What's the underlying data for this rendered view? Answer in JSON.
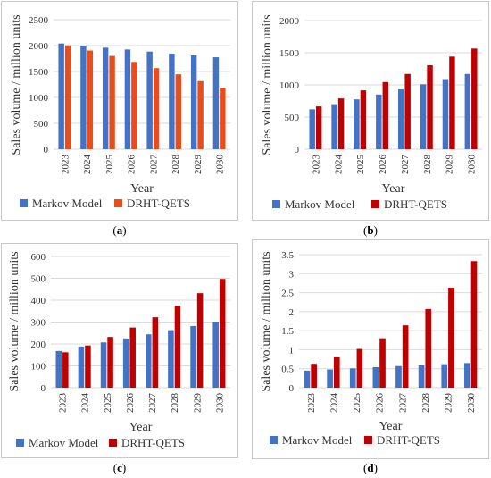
{
  "chart_data": [
    {
      "type": "bar",
      "panel": "a",
      "categories": [
        "2023",
        "2024",
        "2025",
        "2026",
        "2027",
        "2028",
        "2029",
        "2030"
      ],
      "series": [
        {
          "name": "Markov Model",
          "values": [
            2040,
            2000,
            1960,
            1925,
            1885,
            1845,
            1810,
            1775
          ]
        },
        {
          "name": "DRHT-QETS",
          "values": [
            2005,
            1905,
            1800,
            1685,
            1565,
            1445,
            1315,
            1185
          ]
        }
      ],
      "xlabel": "Year",
      "ylabel": "Sales volume / million units",
      "ylim": [
        0,
        2500
      ],
      "yticks": [
        "0",
        "500",
        "1000",
        "1500",
        "2000",
        "2500"
      ],
      "grid": true,
      "legend": "bottom",
      "colors": [
        "#4472c4",
        "#e84e1b"
      ]
    },
    {
      "type": "bar",
      "panel": "b",
      "categories": [
        "2023",
        "2024",
        "2025",
        "2026",
        "2027",
        "2028",
        "2029",
        "2030"
      ],
      "series": [
        {
          "name": "Markov Model",
          "values": [
            620,
            700,
            775,
            850,
            930,
            1010,
            1090,
            1170
          ]
        },
        {
          "name": "DRHT-QETS",
          "values": [
            665,
            790,
            915,
            1045,
            1170,
            1305,
            1440,
            1565
          ]
        }
      ],
      "xlabel": "Year",
      "ylabel": "Sales volume / million units",
      "ylim": [
        0,
        2000
      ],
      "yticks": [
        "0",
        "500",
        "1000",
        "1500",
        "2000"
      ],
      "grid": true,
      "legend": "bottom",
      "colors": [
        "#4472c4",
        "#c00000"
      ]
    },
    {
      "type": "bar",
      "panel": "c",
      "categories": [
        "2023",
        "2024",
        "2025",
        "2026",
        "2027",
        "2028",
        "2029",
        "2030"
      ],
      "series": [
        {
          "name": "Markov Model",
          "values": [
            168,
            188,
            207,
            225,
            244,
            263,
            282,
            302
          ]
        },
        {
          "name": "DRHT-QETS",
          "values": [
            162,
            193,
            232,
            275,
            322,
            374,
            432,
            497
          ]
        }
      ],
      "xlabel": "Year",
      "ylabel": "Sales volume / million units",
      "ylim": [
        0,
        600
      ],
      "yticks": [
        "0",
        "100",
        "200",
        "300",
        "400",
        "500",
        "600"
      ],
      "grid": true,
      "legend": "bottom",
      "colors": [
        "#4472c4",
        "#c00000"
      ]
    },
    {
      "type": "bar",
      "panel": "d",
      "categories": [
        "2023",
        "2024",
        "2025",
        "2026",
        "2027",
        "2028",
        "2029",
        "2030"
      ],
      "series": [
        {
          "name": "Markov Model",
          "values": [
            0.45,
            0.48,
            0.51,
            0.54,
            0.57,
            0.6,
            0.62,
            0.65
          ]
        },
        {
          "name": "DRHT-QETS",
          "values": [
            0.63,
            0.8,
            1.02,
            1.3,
            1.64,
            2.07,
            2.63,
            3.33
          ]
        }
      ],
      "xlabel": "Year",
      "ylabel": "Sales volume / million units",
      "ylim": [
        0,
        3.5
      ],
      "yticks": [
        "0",
        "0.5",
        "1",
        "1.5",
        "2",
        "2.5",
        "3",
        "3.5"
      ],
      "grid": true,
      "legend": "bottom",
      "colors": [
        "#4472c4",
        "#c00000"
      ]
    }
  ],
  "captions": {
    "a_open": "(",
    "a_letter": "a",
    "a_close": ")",
    "b_open": "(",
    "b_letter": "b",
    "b_close": ")",
    "c_open": "(",
    "c_letter": "c",
    "c_close": ")",
    "d_open": "(",
    "d_letter": "d",
    "d_close": ")"
  }
}
